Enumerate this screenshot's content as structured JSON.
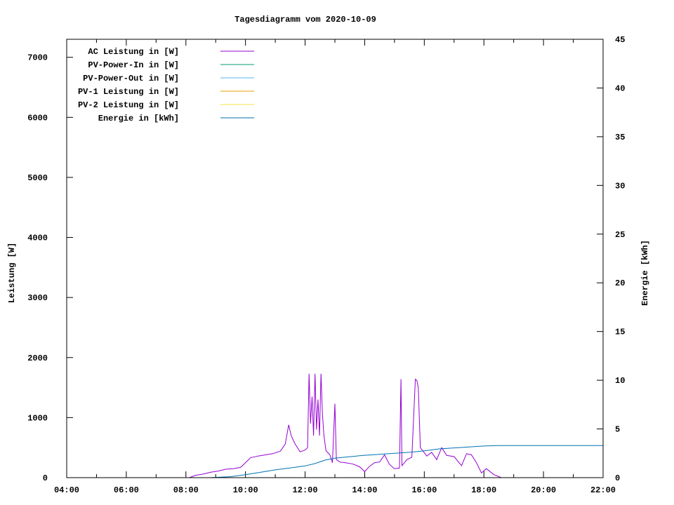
{
  "chart_data": {
    "type": "line",
    "title": "Tagesdiagramm vom 2020-10-09",
    "ylabel": "Leistung [W]",
    "y2label": "Energie [kWh]",
    "xlim": [
      "04:00",
      "22:00"
    ],
    "xticks": [
      "04:00",
      "06:00",
      "08:00",
      "10:00",
      "12:00",
      "14:00",
      "16:00",
      "18:00",
      "20:00",
      "22:00"
    ],
    "ylim": [
      0,
      7300
    ],
    "yticks": [
      0,
      1000,
      2000,
      3000,
      4000,
      5000,
      6000,
      7000
    ],
    "y2lim": [
      0,
      45
    ],
    "y2ticks": [
      0,
      5,
      10,
      15,
      20,
      25,
      30,
      35,
      40,
      45
    ],
    "grid": false,
    "legend_placement": "top-left",
    "series": [
      {
        "name": "AC Leistung in [W]",
        "color": "#9400d3",
        "axis": "y",
        "points": [
          [
            "08:07",
            0
          ],
          [
            "08:20",
            40
          ],
          [
            "08:35",
            60
          ],
          [
            "08:50",
            90
          ],
          [
            "09:05",
            110
          ],
          [
            "09:20",
            140
          ],
          [
            "09:35",
            150
          ],
          [
            "09:50",
            170
          ],
          [
            "10:00",
            250
          ],
          [
            "10:10",
            330
          ],
          [
            "10:25",
            360
          ],
          [
            "10:40",
            380
          ],
          [
            "10:55",
            400
          ],
          [
            "11:10",
            440
          ],
          [
            "11:20",
            560
          ],
          [
            "11:27",
            880
          ],
          [
            "11:32",
            700
          ],
          [
            "11:40",
            560
          ],
          [
            "11:50",
            430
          ],
          [
            "12:00",
            460
          ],
          [
            "12:05",
            500
          ],
          [
            "12:08",
            1730
          ],
          [
            "12:11",
            900
          ],
          [
            "12:14",
            1350
          ],
          [
            "12:17",
            700
          ],
          [
            "12:20",
            1730
          ],
          [
            "12:23",
            800
          ],
          [
            "12:26",
            1300
          ],
          [
            "12:29",
            700
          ],
          [
            "12:32",
            1730
          ],
          [
            "12:35",
            1050
          ],
          [
            "12:38",
            700
          ],
          [
            "12:42",
            450
          ],
          [
            "12:50",
            380
          ],
          [
            "12:55",
            250
          ],
          [
            "13:00",
            1230
          ],
          [
            "13:03",
            300
          ],
          [
            "13:10",
            260
          ],
          [
            "13:20",
            250
          ],
          [
            "13:35",
            230
          ],
          [
            "13:50",
            180
          ],
          [
            "14:00",
            100
          ],
          [
            "14:10",
            190
          ],
          [
            "14:20",
            250
          ],
          [
            "14:30",
            260
          ],
          [
            "14:40",
            380
          ],
          [
            "14:50",
            220
          ],
          [
            "15:00",
            150
          ],
          [
            "15:10",
            160
          ],
          [
            "15:13",
            1640
          ],
          [
            "15:15",
            200
          ],
          [
            "15:25",
            300
          ],
          [
            "15:35",
            340
          ],
          [
            "15:42",
            1640
          ],
          [
            "15:45",
            1620
          ],
          [
            "15:48",
            1500
          ],
          [
            "15:52",
            500
          ],
          [
            "16:05",
            360
          ],
          [
            "16:15",
            420
          ],
          [
            "16:25",
            300
          ],
          [
            "16:35",
            500
          ],
          [
            "16:45",
            370
          ],
          [
            "17:00",
            350
          ],
          [
            "17:15",
            200
          ],
          [
            "17:25",
            400
          ],
          [
            "17:35",
            380
          ],
          [
            "17:45",
            250
          ],
          [
            "17:55",
            80
          ],
          [
            "18:05",
            150
          ],
          [
            "18:20",
            50
          ],
          [
            "18:35",
            0
          ]
        ]
      },
      {
        "name": "PV-Power-In in [W]",
        "color": "#009e73",
        "axis": "y",
        "points": []
      },
      {
        "name": "PV-Power-Out in [W]",
        "color": "#56b4e9",
        "axis": "y",
        "points": []
      },
      {
        "name": "PV-1 Leistung in [W]",
        "color": "#e69f00",
        "axis": "y",
        "points": []
      },
      {
        "name": "PV-2 Leistung in [W]",
        "color": "#f0e442",
        "axis": "y",
        "points": []
      },
      {
        "name": "Energie in [kWh]",
        "color": "#0072b2",
        "axis": "y2",
        "points": [
          [
            "08:47",
            0
          ],
          [
            "09:30",
            0.1
          ],
          [
            "10:00",
            0.3
          ],
          [
            "10:30",
            0.55
          ],
          [
            "11:00",
            0.8
          ],
          [
            "11:30",
            1.0
          ],
          [
            "12:00",
            1.2
          ],
          [
            "12:20",
            1.45
          ],
          [
            "12:40",
            1.8
          ],
          [
            "13:00",
            2.0
          ],
          [
            "13:30",
            2.15
          ],
          [
            "14:00",
            2.3
          ],
          [
            "14:30",
            2.4
          ],
          [
            "15:00",
            2.5
          ],
          [
            "15:30",
            2.6
          ],
          [
            "16:00",
            2.75
          ],
          [
            "16:30",
            2.95
          ],
          [
            "17:00",
            3.05
          ],
          [
            "17:30",
            3.15
          ],
          [
            "18:00",
            3.25
          ],
          [
            "18:30",
            3.3
          ],
          [
            "19:00",
            3.3
          ],
          [
            "22:00",
            3.3
          ]
        ]
      }
    ]
  }
}
